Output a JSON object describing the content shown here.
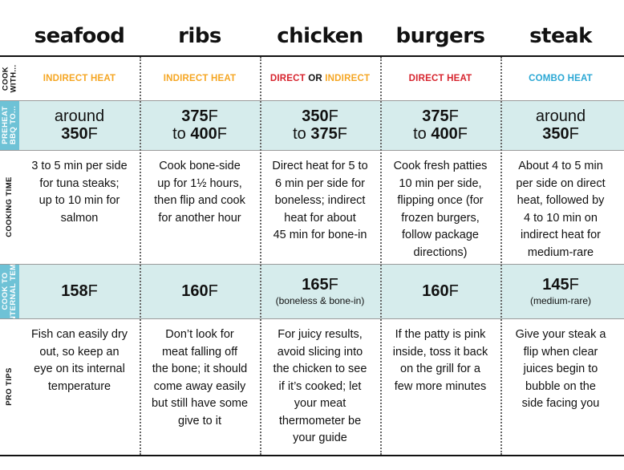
{
  "columns": [
    "seafood",
    "ribs",
    "chicken",
    "burgers",
    "steak"
  ],
  "rows": {
    "cook_with": {
      "label": "COOK WITH...",
      "cells": [
        {
          "parts": [
            {
              "text": "INDIRECT HEAT",
              "color": "#f5a623"
            }
          ]
        },
        {
          "parts": [
            {
              "text": "INDIRECT HEAT",
              "color": "#f5a623"
            }
          ]
        },
        {
          "parts": [
            {
              "text": "DIRECT",
              "color": "#d7242e"
            },
            {
              "text": " OR ",
              "color": "#111111"
            },
            {
              "text": "INDIRECT",
              "color": "#f5a623"
            }
          ]
        },
        {
          "parts": [
            {
              "text": "DIRECT HEAT",
              "color": "#d7242e"
            }
          ]
        },
        {
          "parts": [
            {
              "text": "COMBO HEAT",
              "color": "#2aa7d4"
            }
          ]
        }
      ]
    },
    "preheat": {
      "label": "PREHEAT BBQ TO...",
      "cells": [
        {
          "line1_prefix": "around",
          "line1_value": "",
          "line1_unit": "",
          "line2_prefix": "",
          "line2_value": "350",
          "line2_unit": "F"
        },
        {
          "line1_prefix": "",
          "line1_value": "375",
          "line1_unit": "F",
          "line2_prefix": "to ",
          "line2_value": "400",
          "line2_unit": "F"
        },
        {
          "line1_prefix": "",
          "line1_value": "350",
          "line1_unit": "F",
          "line2_prefix": "to ",
          "line2_value": "375",
          "line2_unit": "F"
        },
        {
          "line1_prefix": "",
          "line1_value": "375",
          "line1_unit": "F",
          "line2_prefix": "to ",
          "line2_value": "400",
          "line2_unit": "F"
        },
        {
          "line1_prefix": "around",
          "line1_value": "",
          "line1_unit": "",
          "line2_prefix": "",
          "line2_value": "350",
          "line2_unit": "F"
        }
      ]
    },
    "cooking_time": {
      "label": "COOKING TIME",
      "cells": [
        [
          "3 to 5 min per side",
          "for tuna steaks;",
          "up to 10 min for",
          "salmon"
        ],
        [
          "Cook bone-side",
          "up for 1½ hours,",
          "then flip and cook",
          "for another hour"
        ],
        [
          "Direct heat for 5 to",
          "6 min per side for",
          "boneless; indirect",
          "heat for about",
          "45 min for bone-in"
        ],
        [
          "Cook fresh patties",
          "10 min per side,",
          "flipping once (for",
          "frozen burgers,",
          "follow package",
          "directions)"
        ],
        [
          "About 4 to 5 min",
          "per side on direct",
          "heat, followed by",
          "4 to 10 min on",
          "indirect heat for",
          "medium-rare"
        ]
      ]
    },
    "internal_temp": {
      "label": "COOK TO INTERNAL TEMP",
      "cells": [
        {
          "value": "158",
          "unit": "F",
          "note": ""
        },
        {
          "value": "160",
          "unit": "F",
          "note": ""
        },
        {
          "value": "165",
          "unit": "F",
          "note": "(boneless & bone-in)"
        },
        {
          "value": "160",
          "unit": "F",
          "note": ""
        },
        {
          "value": "145",
          "unit": "F",
          "note": "(medium-rare)"
        }
      ]
    },
    "pro_tips": {
      "label": "PRO TIPS",
      "cells": [
        [
          "Fish can easily dry",
          "out, so keep an",
          "eye on its internal",
          "temperature"
        ],
        [
          "Don’t look for",
          "meat falling off",
          "the bone; it should",
          "come away easily",
          "but still have some",
          "give to it"
        ],
        [
          "For juicy results,",
          "avoid slicing into",
          "the chicken to see",
          "if it’s cooked; let",
          "your meat",
          "thermometer be",
          "your guide"
        ],
        [
          "If the patty is pink",
          "inside, toss it back",
          "on the grill for a",
          "few more minutes"
        ],
        [
          "Give your steak a",
          "flip when clear",
          "juices begin to",
          "bubble on the",
          "side facing you"
        ]
      ]
    }
  },
  "colors": {
    "shaded_row": "#d6ecec",
    "label_blue": "#6ec2d6",
    "indirect": "#f5a623",
    "direct": "#d7242e",
    "combo": "#2aa7d4"
  }
}
